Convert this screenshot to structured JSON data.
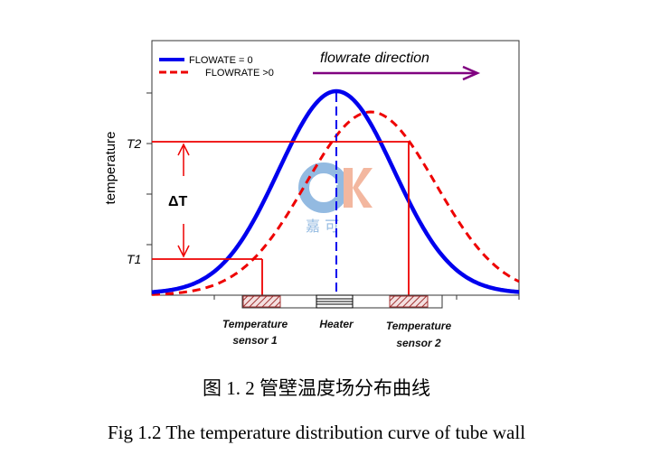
{
  "figure": {
    "legend": [
      {
        "label": "FLOWATE = 0",
        "color": "#0000ee",
        "style": "solid"
      },
      {
        "label": "FLOWRATE >0",
        "color": "#ee0000",
        "style": "dashed"
      }
    ],
    "direction_label": "flowrate direction",
    "direction_color": "#800080",
    "ylabel": "temperature",
    "t2_label": "T2",
    "t1_label": "T1",
    "delta_label": "ΔT",
    "components": [
      "Temperature sensor 1",
      "Heater",
      "Temperature sensor 2"
    ],
    "logo": {
      "letters": "GK",
      "chinese": "嘉 可"
    }
  },
  "captions": {
    "chinese": "图 1. 2 管壁温度场分布曲线",
    "english": "Fig 1.2 The temperature distribution curve of tube wall"
  }
}
